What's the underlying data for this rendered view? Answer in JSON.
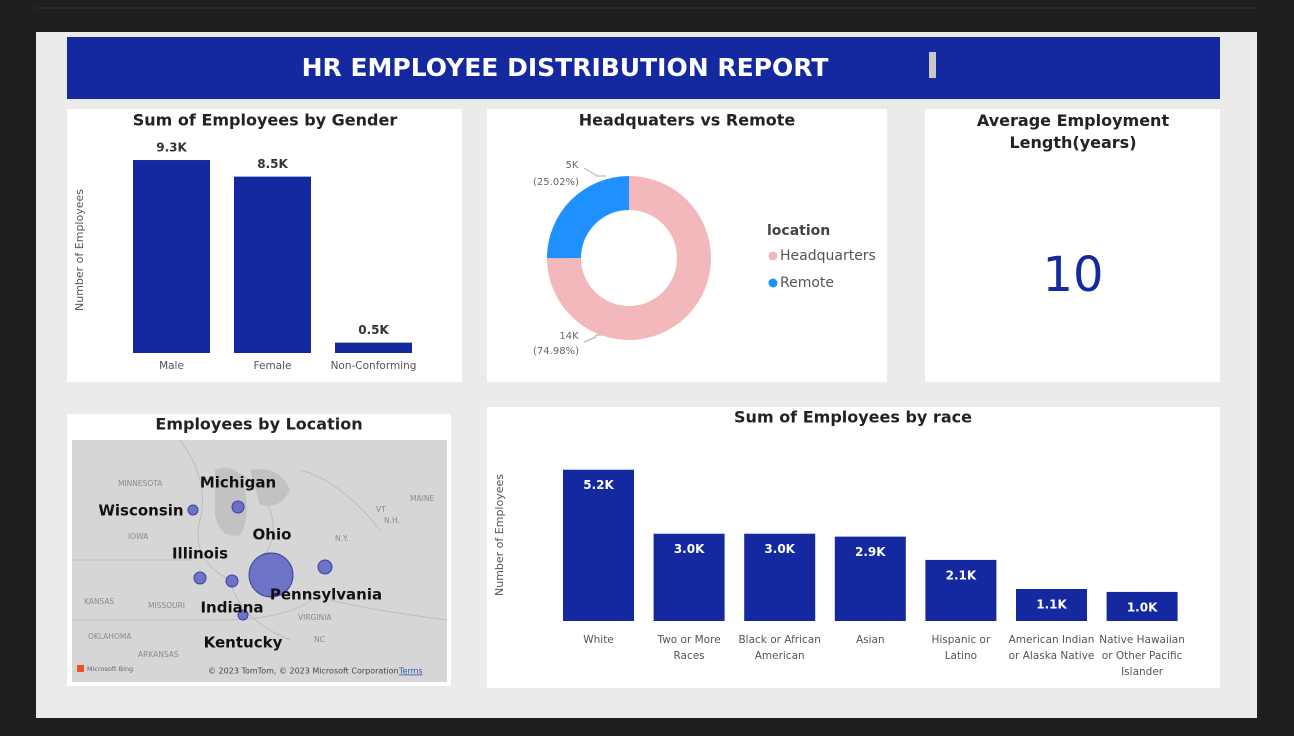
{
  "header": {
    "title": "HR EMPLOYEE DISTRIBUTION REPORT"
  },
  "chart_data": [
    {
      "type": "bar",
      "title": "Sum of Employees by Gender",
      "y_label": "Number of Employees",
      "categories": [
        "Male",
        "Female",
        "Non-Conforming"
      ],
      "values": [
        9300,
        8500,
        500
      ],
      "value_labels": [
        "9.3K",
        "8.5K",
        "0.5K"
      ],
      "color": "#1428a0",
      "ylim": [
        0,
        10000
      ],
      "label_position": "outside"
    },
    {
      "type": "donut",
      "title": "Headquaters vs Remote",
      "legend_title": "location",
      "legend_position": "right",
      "categories": [
        "Headquarters",
        "Remote"
      ],
      "values": [
        74.98,
        25.02
      ],
      "value_labels": [
        "(74.98%)",
        "(25.02%)"
      ],
      "count_labels": [
        "14K",
        "5K"
      ],
      "colors": [
        "#f2b8bc",
        "#1e90ff"
      ]
    },
    {
      "type": "bar",
      "title": "Sum of Employees by race",
      "y_label": "Number of Employees",
      "categories": [
        "White",
        "Two or More Races",
        "Black or African American",
        "Asian",
        "Hispanic or Latino",
        "American Indian or Alaska Native",
        "Native Hawaiian or Other Pacific Islander"
      ],
      "values": [
        5200,
        3000,
        3000,
        2900,
        2100,
        1100,
        1000
      ],
      "value_labels": [
        "5.2K",
        "3.0K",
        "3.0K",
        "2.9K",
        "2.1K",
        "1.1K",
        "1.0K"
      ],
      "color": "#1428a0",
      "ylim": [
        0,
        5500
      ],
      "label_position": "inside"
    }
  ],
  "kpi": {
    "title": "Average Employment Length(years)",
    "value": 10
  },
  "map": {
    "title": "Employees by Location",
    "state_labels": [
      "Michigan",
      "Wisconsin",
      "Ohio",
      "Illinois",
      "Indiana",
      "Pennsylvania",
      "Kentucky"
    ],
    "base_labels": [
      "MINNESOTA",
      "IOWA",
      "KANSAS",
      "MISSOURI",
      "OKLAHOMA",
      "ARKANSAS",
      "MAINE",
      "VT",
      "N.H.",
      "N.Y.",
      "VIRGINIA",
      "NC"
    ],
    "brand": "Microsoft Bing",
    "attribution": "© 2023 TomTom, © 2023 Microsoft Corporation",
    "terms": "Terms"
  }
}
